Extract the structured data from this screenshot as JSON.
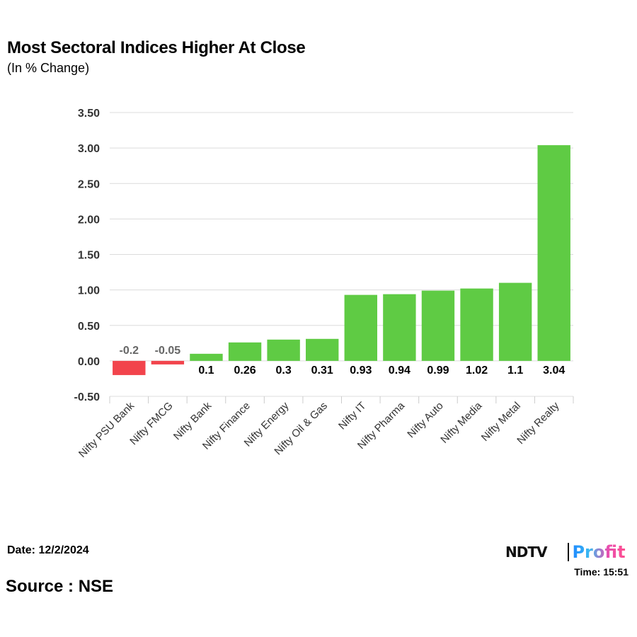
{
  "chart_data": {
    "type": "bar",
    "title": "Most Sectoral Indices Higher At Close",
    "subtitle": "(In % Change)",
    "categories": [
      "Nifty PSU Bank",
      "Nifty FMCG",
      "Nifty Bank",
      "Nifty Finance",
      "Nifty Energy",
      "Nifty Oil & Gas",
      "Nifty IT",
      "Nifty Pharma",
      "Nifty Auto",
      "Nifty Media",
      "Nifty Metal",
      "Nifty Realty"
    ],
    "values": [
      -0.2,
      -0.05,
      0.1,
      0.26,
      0.3,
      0.31,
      0.93,
      0.94,
      0.99,
      1.02,
      1.1,
      3.04
    ],
    "data_labels": [
      "-0.2",
      "-0.05",
      "0.1",
      "0.26",
      "0.3",
      "0.31",
      "0.93",
      "0.94",
      "0.99",
      "1.02",
      "1.1",
      "3.04"
    ],
    "yticks": [
      "-0.50",
      "0.00",
      "0.50",
      "1.00",
      "1.50",
      "2.00",
      "2.50",
      "3.00",
      "3.50"
    ],
    "ylim": [
      -0.5,
      3.5
    ],
    "grid": true,
    "colors": {
      "positive": "#5fcb44",
      "negative": "#f2444c",
      "negative_label": "#666666"
    }
  },
  "footer": {
    "date": "Date: 12/2/2024",
    "source": "Source : NSE",
    "time": "Time: 15:51"
  },
  "logo": {
    "ndtv": "NDTV",
    "profit": "Profit"
  }
}
